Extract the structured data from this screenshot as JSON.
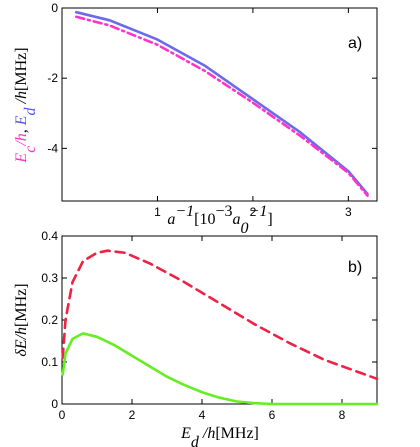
{
  "chart_data": [
    {
      "type": "line",
      "panel_label": "a)",
      "xlim": [
        0,
        3.3
      ],
      "ylim": [
        -5.5,
        0
      ],
      "x_ticks": [
        {
          "v": 1,
          "label": "1"
        },
        {
          "v": 2,
          "label": "2"
        },
        {
          "v": 3,
          "label": "3"
        }
      ],
      "y_ticks": [
        {
          "v": 0,
          "label": "0"
        },
        {
          "v": -2,
          "label": "-2"
        },
        {
          "v": -4,
          "label": "-4"
        }
      ],
      "ylabel_parts": [
        {
          "text": "E",
          "color": "#ff33cc"
        },
        {
          "text": "c",
          "color": "#ff33cc"
        },
        {
          "text": "/h",
          "color": "#ff33cc"
        },
        {
          "text": ", ",
          "color": "#000000"
        },
        {
          "text": "E",
          "color": "#5555ee"
        },
        {
          "text": "d",
          "color": "#5555ee"
        },
        {
          "text": " /h",
          "color": "#000000"
        },
        {
          "text": "[MHz]",
          "color": "#000000"
        }
      ],
      "xlabel_parts": [
        {
          "text": "a",
          "color": "#000000"
        },
        {
          "text": "−1",
          "color": "#000000"
        },
        {
          "text": "[10",
          "color": "#000000"
        },
        {
          "text": "−3",
          "color": "#000000"
        },
        {
          "text": "a",
          "color": "#000000"
        },
        {
          "text": "0",
          "color": "#000000"
        },
        {
          "text": "−1",
          "color": "#000000"
        },
        {
          "text": "]",
          "color": "#000000"
        }
      ],
      "series": [
        {
          "color": "#6b6bea",
          "dash": "none",
          "x": [
            0.15,
            0.5,
            1.0,
            1.5,
            2.0,
            2.5,
            3.0,
            3.2
          ],
          "y": [
            -0.12,
            -0.35,
            -0.9,
            -1.65,
            -2.6,
            -3.55,
            -4.65,
            -5.3
          ]
        },
        {
          "color": "#ff33cc",
          "dash": "dashdot",
          "x": [
            0.15,
            0.5,
            1.0,
            1.5,
            2.0,
            2.5,
            3.0,
            3.2
          ],
          "y": [
            -0.25,
            -0.5,
            -1.05,
            -1.8,
            -2.7,
            -3.65,
            -4.7,
            -5.35
          ]
        }
      ]
    },
    {
      "type": "line",
      "panel_label": "b)",
      "xlim": [
        0,
        9
      ],
      "ylim": [
        0,
        0.4
      ],
      "x_ticks": [
        {
          "v": 0,
          "label": "0"
        },
        {
          "v": 2,
          "label": "2"
        },
        {
          "v": 4,
          "label": "4"
        },
        {
          "v": 6,
          "label": "6"
        },
        {
          "v": 8,
          "label": "8"
        }
      ],
      "y_ticks": [
        {
          "v": 0,
          "label": "0"
        },
        {
          "v": 0.1,
          "label": "0.1"
        },
        {
          "v": 0.2,
          "label": "0.2"
        },
        {
          "v": 0.3,
          "label": "0.3"
        },
        {
          "v": 0.4,
          "label": "0.4"
        }
      ],
      "ylabel_parts": [
        {
          "text": "δE",
          "color": "#000000"
        },
        {
          "text": "/h",
          "color": "#000000"
        },
        {
          "text": "[MHz]",
          "color": "#000000"
        }
      ],
      "xlabel_parts": [
        {
          "text": "E",
          "color": "#000000"
        },
        {
          "text": "d",
          "color": "#000000"
        },
        {
          "text": " /h",
          "color": "#000000"
        },
        {
          "text": "[MHz]",
          "color": "#000000"
        }
      ],
      "series": [
        {
          "color": "#ee2244",
          "dash": "dashed",
          "x": [
            0.02,
            0.1,
            0.3,
            0.6,
            1.0,
            1.3,
            1.8,
            2.5,
            3.5,
            4.5,
            5.5,
            6.5,
            7.5,
            8.5,
            9.0
          ],
          "y": [
            0.11,
            0.2,
            0.29,
            0.34,
            0.36,
            0.365,
            0.36,
            0.335,
            0.29,
            0.24,
            0.19,
            0.145,
            0.105,
            0.075,
            0.06
          ]
        },
        {
          "color": "#66ee22",
          "dash": "none",
          "x": [
            0.02,
            0.1,
            0.3,
            0.6,
            1.0,
            1.5,
            2.0,
            2.5,
            3.0,
            3.5,
            4.0,
            4.5,
            5.0,
            5.5,
            6.0,
            7.0,
            8.0,
            9.0
          ],
          "y": [
            0.07,
            0.12,
            0.155,
            0.168,
            0.16,
            0.14,
            0.115,
            0.09,
            0.065,
            0.045,
            0.028,
            0.015,
            0.006,
            0.002,
            0.0,
            0.0,
            0.0,
            0.0
          ]
        }
      ]
    }
  ]
}
